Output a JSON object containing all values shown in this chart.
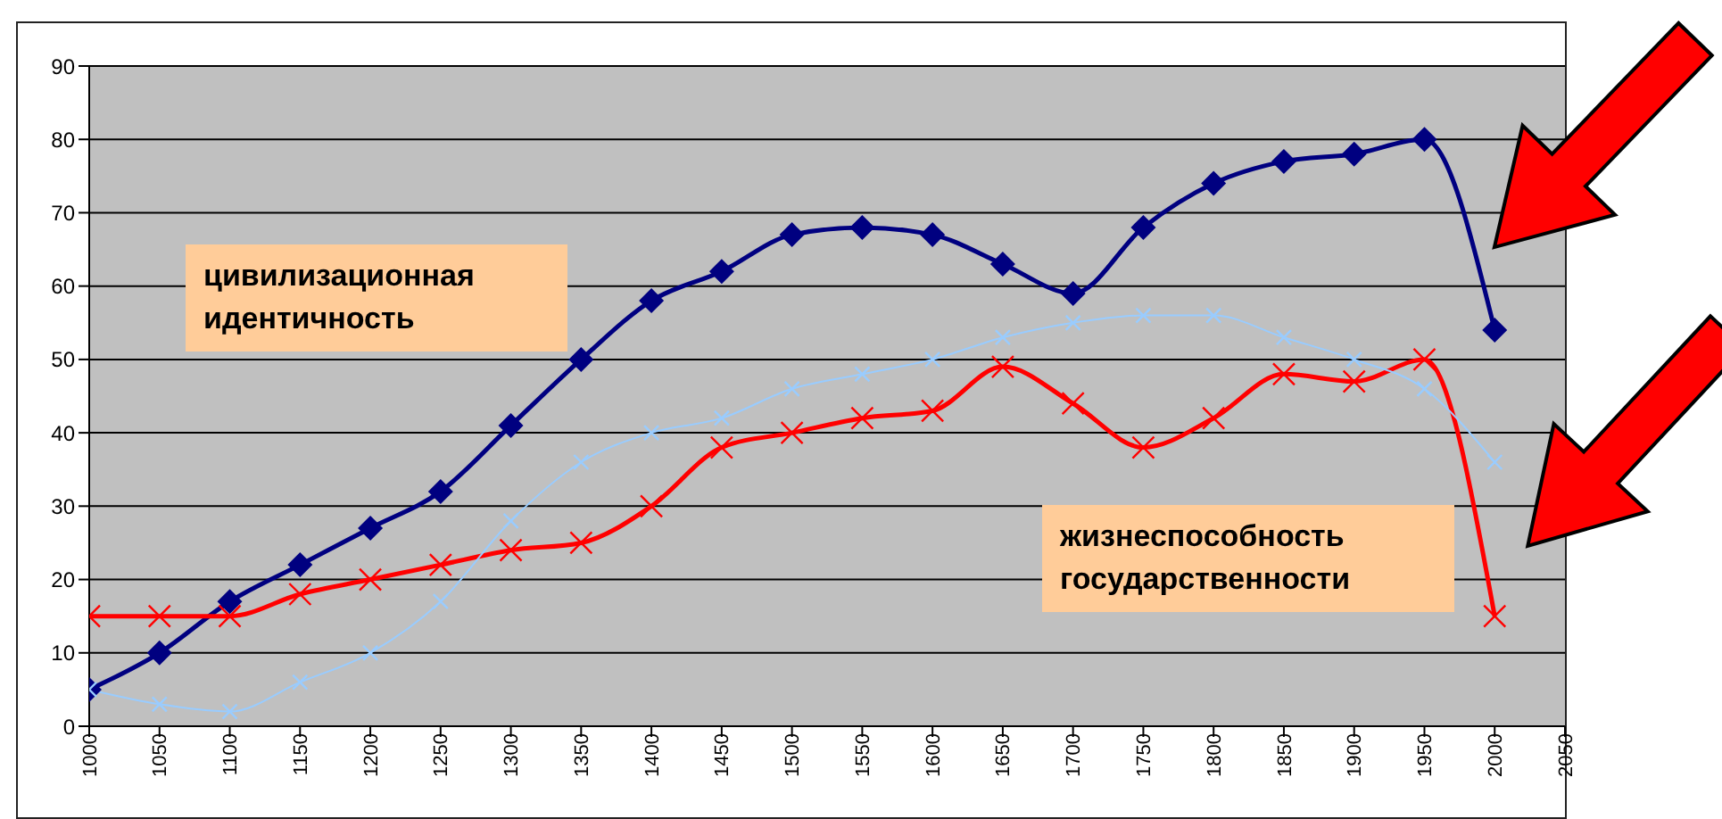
{
  "chart_data": {
    "type": "line",
    "x": [
      1000,
      1050,
      1100,
      1150,
      1200,
      1250,
      1300,
      1350,
      1400,
      1450,
      1500,
      1550,
      1600,
      1650,
      1700,
      1750,
      1800,
      1850,
      1900,
      1950,
      2000
    ],
    "series": [
      {
        "color": "#000080",
        "marker": "diamond",
        "values": [
          5,
          10,
          17,
          22,
          27,
          32,
          41,
          50,
          58,
          62,
          67,
          68,
          67,
          63,
          59,
          68,
          74,
          77,
          78,
          80,
          54
        ]
      },
      {
        "color": "#ff0000",
        "marker": "cross",
        "values": [
          15,
          15,
          15,
          18,
          20,
          22,
          24,
          25,
          30,
          38,
          40,
          42,
          43,
          49,
          44,
          38,
          42,
          48,
          47,
          50,
          15
        ]
      },
      {
        "color": "#99ccff",
        "marker": "cross",
        "values": [
          5,
          3,
          2,
          6,
          10,
          17,
          28,
          36,
          40,
          42,
          46,
          48,
          50,
          53,
          55,
          56,
          56,
          53,
          50,
          46,
          36
        ]
      }
    ],
    "xlim": [
      1000,
      2050
    ],
    "xticks": [
      1000,
      1050,
      1100,
      1150,
      1200,
      1250,
      1300,
      1350,
      1400,
      1450,
      1500,
      1550,
      1600,
      1650,
      1700,
      1750,
      1800,
      1850,
      1900,
      1950,
      2000,
      2050
    ],
    "ylim": [
      0,
      90
    ],
    "yticks": [
      0,
      10,
      20,
      30,
      40,
      50,
      60,
      70,
      80,
      90
    ],
    "grid": "y",
    "annotations": [
      "цивилизационная идентичность",
      "жизнеспособность государственности"
    ]
  }
}
